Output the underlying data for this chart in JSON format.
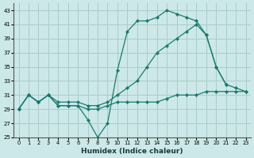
{
  "xlabel": "Humidex (Indice chaleur)",
  "bg_color": "#cce8e8",
  "grid_color": "#aacccc",
  "line_color": "#1a7a6e",
  "xlim": [
    -0.5,
    23.5
  ],
  "ylim": [
    25,
    44
  ],
  "xticks": [
    0,
    1,
    2,
    3,
    4,
    5,
    6,
    7,
    8,
    9,
    10,
    11,
    12,
    13,
    14,
    15,
    16,
    17,
    18,
    19,
    20,
    21,
    22,
    23
  ],
  "yticks": [
    25,
    27,
    29,
    31,
    33,
    35,
    37,
    39,
    41,
    43
  ],
  "line1_x": [
    0,
    1,
    2,
    3,
    4,
    5,
    6,
    7,
    8,
    9,
    10,
    11,
    12,
    13,
    14,
    15,
    16,
    17,
    18,
    19,
    20,
    21,
    22,
    23
  ],
  "line1_y": [
    29,
    31,
    30,
    31,
    29.5,
    29.5,
    29.5,
    29,
    29,
    29.5,
    30,
    30,
    30,
    30,
    30,
    30.5,
    31,
    31,
    31,
    31.5,
    31.5,
    31.5,
    31.5,
    31.5
  ],
  "line2_x": [
    0,
    1,
    2,
    3,
    4,
    5,
    6,
    7,
    8,
    9,
    10,
    11,
    12,
    13,
    14,
    15,
    16,
    17,
    18,
    19,
    20,
    21
  ],
  "line2_y": [
    29,
    31,
    30,
    31,
    29.5,
    29.5,
    29.5,
    27.5,
    25,
    27,
    34.5,
    40,
    41.5,
    41.5,
    42,
    43,
    42.5,
    42,
    41.5,
    39.5,
    35,
    32.5
  ],
  "line3_x": [
    0,
    1,
    2,
    3,
    4,
    5,
    6,
    7,
    8,
    9,
    10,
    11,
    12,
    13,
    14,
    15,
    16,
    17,
    18,
    19,
    20,
    21,
    22,
    23
  ],
  "line3_y": [
    29,
    31,
    30,
    31,
    30,
    30,
    30,
    29.5,
    29.5,
    30,
    31,
    32,
    33,
    35,
    37,
    38,
    39,
    40,
    41,
    39.5,
    35,
    32.5,
    32,
    31.5
  ]
}
